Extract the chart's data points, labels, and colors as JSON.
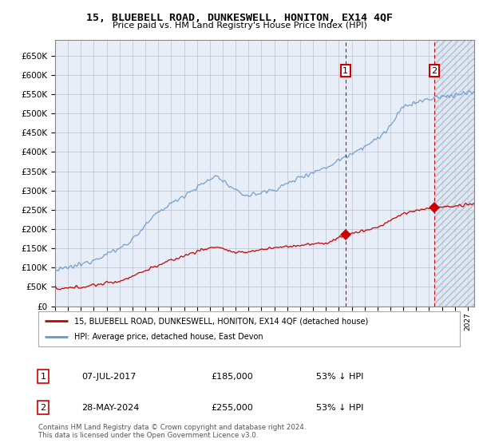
{
  "title": "15, BLUEBELL ROAD, DUNKESWELL, HONITON, EX14 4QF",
  "subtitle": "Price paid vs. HM Land Registry's House Price Index (HPI)",
  "legend_line1": "15, BLUEBELL ROAD, DUNKESWELL, HONITON, EX14 4QF (detached house)",
  "legend_line2": "HPI: Average price, detached house, East Devon",
  "footnote": "Contains HM Land Registry data © Crown copyright and database right 2024.\nThis data is licensed under the Open Government Licence v3.0.",
  "sale1_date": "07-JUL-2017",
  "sale1_price": "£185,000",
  "sale1_pct": "53% ↓ HPI",
  "sale2_date": "28-MAY-2024",
  "sale2_price": "£255,000",
  "sale2_pct": "53% ↓ HPI",
  "ylim": [
    0,
    690000
  ],
  "yticks": [
    0,
    50000,
    100000,
    150000,
    200000,
    250000,
    300000,
    350000,
    400000,
    450000,
    500000,
    550000,
    600000,
    650000
  ],
  "hpi_color": "#6699cc",
  "price_color": "#cc0000",
  "bg_color": "#e8eef8",
  "grid_color": "#c0c8d8",
  "sale1_year": 2017.52,
  "sale2_year": 2024.41,
  "future_start_year": 2024.41,
  "xmin": 1995,
  "xmax": 2027.5,
  "sale1_price_val": 185000,
  "sale2_price_val": 255000
}
